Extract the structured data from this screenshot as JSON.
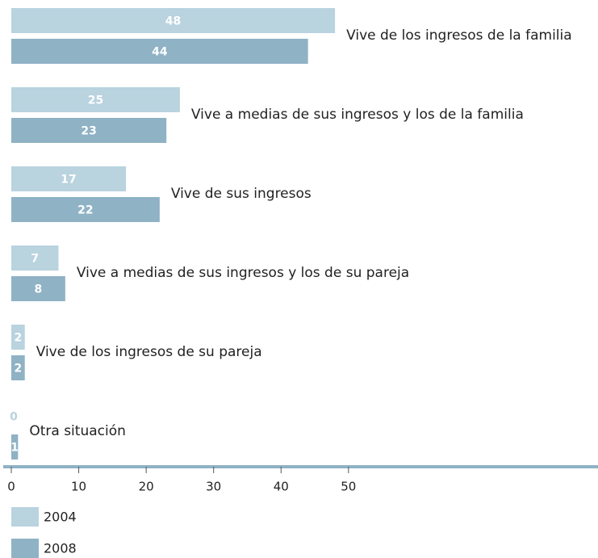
{
  "chart_data": {
    "type": "bar",
    "orientation": "horizontal",
    "categories": [
      "Vive de los ingresos de la familia",
      "Vive a medias de sus ingresos y los de la familia",
      "Vive de sus ingresos",
      "Vive a medias de sus ingresos y los de su pareja",
      "Vive de los ingresos de su pareja",
      "Otra situación"
    ],
    "series": [
      {
        "name": "2004",
        "color": "#b9d3df",
        "values": [
          48,
          25,
          17,
          7,
          2,
          0
        ]
      },
      {
        "name": "2008",
        "color": "#8fb2c5",
        "values": [
          44,
          23,
          22,
          8,
          2,
          1
        ]
      }
    ],
    "xlim": [
      0,
      87
    ],
    "xticks": [
      0,
      10,
      20,
      30,
      40,
      50
    ]
  }
}
